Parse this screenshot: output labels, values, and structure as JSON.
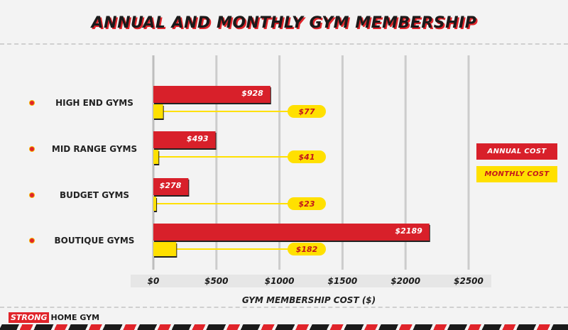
{
  "chart_data": {
    "type": "bar",
    "title": "ANNUAL AND MONTHLY GYM MEMBERSHIP",
    "xlabel": "GYM MEMBERSHIP COST ($)",
    "ylabel": "",
    "xlim": [
      0,
      2500
    ],
    "ticks": [
      0,
      500,
      1000,
      1500,
      2000,
      2500
    ],
    "tick_labels": [
      "$0",
      "$500",
      "$1000",
      "$1500",
      "$2000",
      "$2500"
    ],
    "grid": true,
    "legend_position": "right",
    "categories": [
      "HIGH END GYMS",
      "MID RANGE GYMS",
      "BUDGET GYMS",
      "BOUTIQUE GYMS"
    ],
    "series": [
      {
        "name": "ANNUAL COST",
        "color": "#d8202a",
        "values": [
          928,
          493,
          278,
          2189
        ],
        "labels": [
          "$928",
          "$493",
          "$278",
          "$2189"
        ]
      },
      {
        "name": "MONTHLY COST",
        "color": "#ffe000",
        "values": [
          77,
          41,
          23,
          182
        ],
        "labels": [
          "$77",
          "$41",
          "$23",
          "$182"
        ]
      }
    ]
  },
  "brand": {
    "strong": "STRONG",
    "home": "HOME GYM"
  },
  "colors": {
    "red": "#d8202a",
    "yellow": "#ffe000",
    "label_red": "#c4161c"
  }
}
